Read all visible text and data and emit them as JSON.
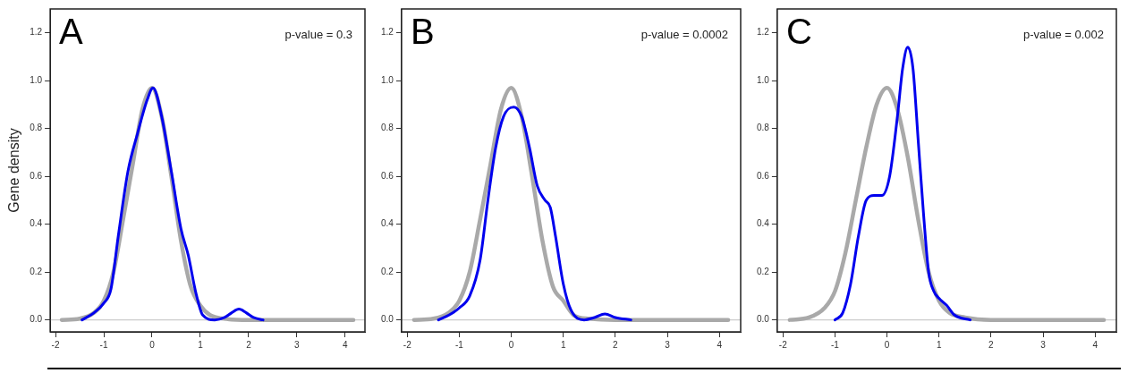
{
  "chart_data": [
    {
      "type": "line",
      "ylabel": "Gene density",
      "annotations": [
        "A",
        "p-value = 0.3"
      ],
      "xlim": [
        -2.11,
        4.41
      ],
      "ylim": [
        -0.05,
        1.3
      ],
      "xticks": [
        -2,
        -1,
        0,
        1,
        2,
        3,
        4
      ],
      "yticks": [
        {
          "value": 0,
          "label": "0.0"
        },
        {
          "value": 0.2,
          "label": "0.2"
        },
        {
          "value": 0.4,
          "label": "0.4"
        },
        {
          "value": 0.6,
          "label": "0.6"
        },
        {
          "value": 0.8,
          "label": "0.8"
        },
        {
          "value": 1,
          "label": "1.0"
        },
        {
          "value": 1.2,
          "label": "1.2"
        }
      ],
      "grid": false,
      "legend": false,
      "marker": "none",
      "line_style": "solid",
      "ref_lines": [
        {
          "axis": "y",
          "value": 0,
          "color": "#cccccc"
        }
      ],
      "series": [
        {
          "color": "#a9a9a9",
          "x": [
            -1.87,
            -1.5,
            -1.2,
            -1,
            -0.8,
            -0.6,
            -0.4,
            -0.2,
            0,
            0.2,
            0.4,
            0.6,
            0.8,
            1,
            1.2,
            1.5,
            2,
            3,
            4.17
          ],
          "values": [
            0,
            0.005,
            0.03,
            0.08,
            0.2,
            0.42,
            0.65,
            0.88,
            0.97,
            0.85,
            0.6,
            0.33,
            0.14,
            0.06,
            0.02,
            0.005,
            0,
            0,
            0
          ]
        },
        {
          "color": "#0000ee",
          "x": [
            -1.45,
            -1.2,
            -1,
            -0.85,
            -0.7,
            -0.5,
            -0.3,
            -0.1,
            0.02,
            0.2,
            0.4,
            0.6,
            0.75,
            0.9,
            1.05,
            1.3,
            1.5,
            1.65,
            1.8,
            1.95,
            2.1,
            2.3
          ],
          "values": [
            0,
            0.03,
            0.07,
            0.13,
            0.35,
            0.62,
            0.78,
            0.92,
            0.97,
            0.85,
            0.62,
            0.38,
            0.27,
            0.12,
            0.02,
            0,
            0.01,
            0.03,
            0.045,
            0.03,
            0.01,
            0
          ]
        }
      ]
    },
    {
      "type": "line",
      "annotations": [
        "B",
        "p-value = 0.0002"
      ],
      "xlim": [
        -2.11,
        4.41
      ],
      "ylim": [
        -0.05,
        1.3
      ],
      "xticks": [
        -2,
        -1,
        0,
        1,
        2,
        3,
        4
      ],
      "yticks": [
        {
          "value": 0,
          "label": "0.0"
        },
        {
          "value": 0.2,
          "label": "0.2"
        },
        {
          "value": 0.4,
          "label": "0.4"
        },
        {
          "value": 0.6,
          "label": "0.6"
        },
        {
          "value": 0.8,
          "label": "0.8"
        },
        {
          "value": 1,
          "label": "1.0"
        },
        {
          "value": 1.2,
          "label": "1.2"
        }
      ],
      "grid": false,
      "legend": false,
      "marker": "none",
      "line_style": "solid",
      "ref_lines": [
        {
          "axis": "y",
          "value": 0,
          "color": "#cccccc"
        }
      ],
      "series": [
        {
          "color": "#a9a9a9",
          "x": [
            -1.87,
            -1.5,
            -1.2,
            -1,
            -0.8,
            -0.6,
            -0.4,
            -0.2,
            0,
            0.2,
            0.4,
            0.6,
            0.8,
            1,
            1.2,
            1.5,
            2,
            3,
            4.17
          ],
          "values": [
            0,
            0.005,
            0.03,
            0.08,
            0.2,
            0.42,
            0.65,
            0.88,
            0.97,
            0.85,
            0.6,
            0.33,
            0.14,
            0.08,
            0.02,
            0.005,
            0,
            0,
            0
          ]
        },
        {
          "color": "#0000ee",
          "x": [
            -1.4,
            -1.2,
            -1,
            -0.8,
            -0.6,
            -0.45,
            -0.3,
            -0.15,
            0.05,
            0.2,
            0.35,
            0.5,
            0.65,
            0.75,
            0.85,
            1,
            1.15,
            1.4,
            1.6,
            1.8,
            2,
            2.3
          ],
          "values": [
            0,
            0.02,
            0.05,
            0.1,
            0.25,
            0.5,
            0.72,
            0.85,
            0.89,
            0.85,
            0.72,
            0.56,
            0.5,
            0.47,
            0.35,
            0.15,
            0.04,
            0,
            0.01,
            0.025,
            0.01,
            0
          ]
        }
      ]
    },
    {
      "type": "line",
      "annotations": [
        "C",
        "p-value = 0.002"
      ],
      "xlim": [
        -2.11,
        4.41
      ],
      "ylim": [
        -0.05,
        1.3
      ],
      "xticks": [
        -2,
        -1,
        0,
        1,
        2,
        3,
        4
      ],
      "yticks": [
        {
          "value": 0,
          "label": "0.0"
        },
        {
          "value": 0.2,
          "label": "0.2"
        },
        {
          "value": 0.4,
          "label": "0.4"
        },
        {
          "value": 0.6,
          "label": "0.6"
        },
        {
          "value": 0.8,
          "label": "0.8"
        },
        {
          "value": 1,
          "label": "1.0"
        },
        {
          "value": 1.2,
          "label": "1.2"
        }
      ],
      "grid": false,
      "legend": false,
      "marker": "none",
      "line_style": "solid",
      "ref_lines": [
        {
          "axis": "y",
          "value": 0,
          "color": "#cccccc"
        }
      ],
      "series": [
        {
          "color": "#a9a9a9",
          "x": [
            -1.87,
            -1.5,
            -1.2,
            -1,
            -0.8,
            -0.6,
            -0.4,
            -0.2,
            0,
            0.2,
            0.4,
            0.6,
            0.8,
            1,
            1.2,
            1.5,
            2,
            3,
            4.17
          ],
          "values": [
            0,
            0.01,
            0.05,
            0.12,
            0.28,
            0.5,
            0.72,
            0.9,
            0.97,
            0.88,
            0.68,
            0.42,
            0.2,
            0.08,
            0.03,
            0.01,
            0,
            0,
            0
          ]
        },
        {
          "color": "#0000ee",
          "x": [
            -1,
            -0.85,
            -0.7,
            -0.55,
            -0.4,
            -0.25,
            -0.1,
            0.05,
            0.2,
            0.3,
            0.4,
            0.5,
            0.6,
            0.7,
            0.8,
            0.9,
            1,
            1.15,
            1.3,
            1.6
          ],
          "values": [
            0,
            0.03,
            0.15,
            0.35,
            0.5,
            0.52,
            0.52,
            0.6,
            0.85,
            1.05,
            1.14,
            1.05,
            0.75,
            0.45,
            0.2,
            0.12,
            0.09,
            0.06,
            0.02,
            0
          ]
        }
      ]
    }
  ]
}
